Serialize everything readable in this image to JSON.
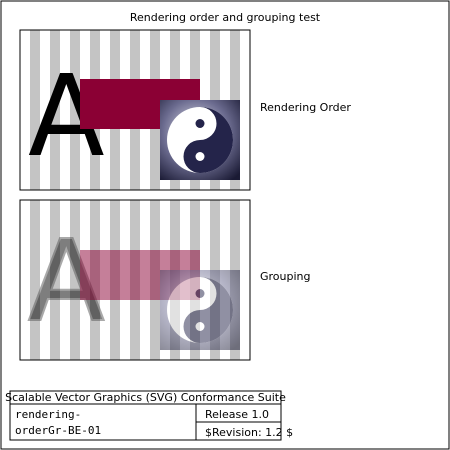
{
  "test": {
    "title": "Rendering order and grouping test",
    "panel_labels": [
      "Rendering Order",
      "Grouping"
    ],
    "glyph": "A"
  },
  "colors": {
    "stripe": "#c4c4c4",
    "rect_fill": "#8b0034",
    "glyph_fill": "#000000",
    "yin_dark": "#24244a",
    "yin_light": "#ffffff"
  },
  "icons": {
    "yin_yang": "yin-yang-icon"
  },
  "footer": {
    "suite": "Scalable Vector Graphics (SVG) Conformance Suite",
    "test_name": "rendering-\norderGr-BE-01",
    "test_name_line1": "rendering-",
    "test_name_line2": "orderGr-BE-01",
    "release": "Release 1.0",
    "revision": "$Revision: 1.2 $"
  }
}
